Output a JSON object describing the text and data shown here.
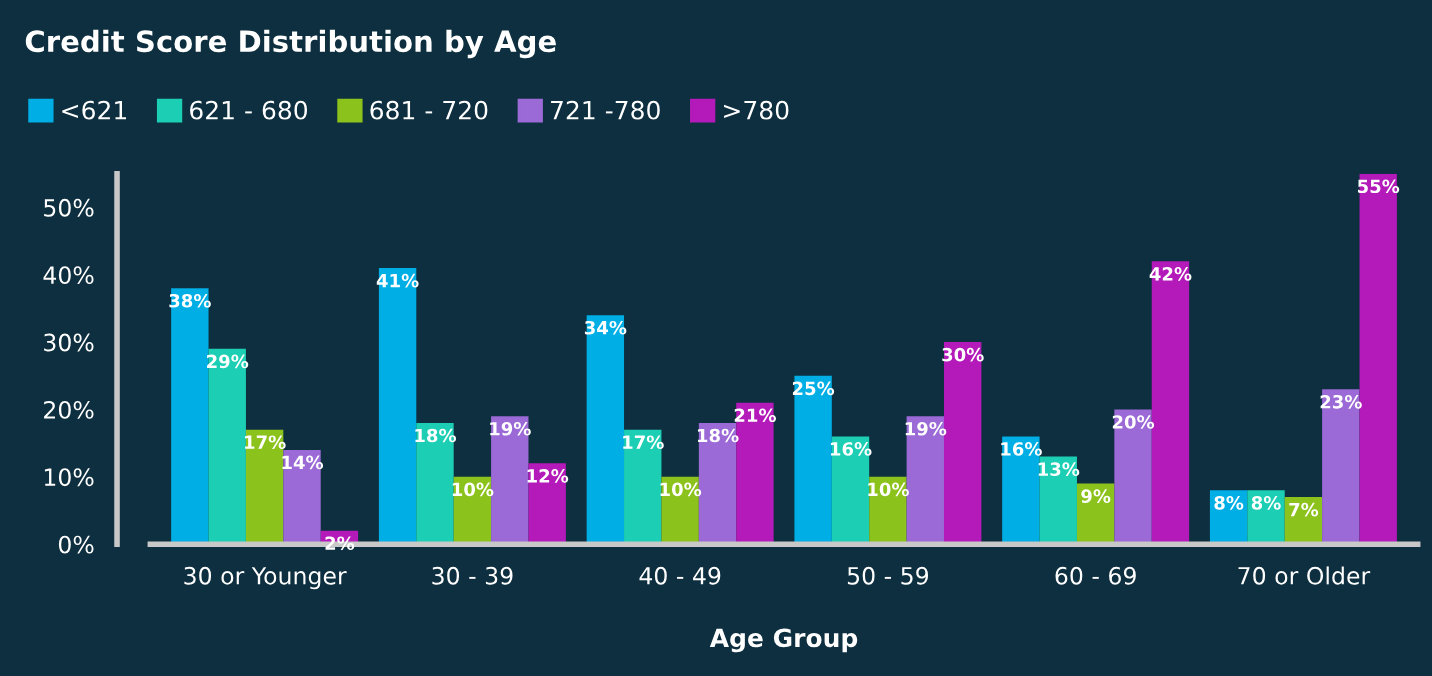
{
  "chart_data": {
    "type": "bar",
    "title": "Credit Score Distribution by Age",
    "xlabel": "Age Group",
    "categories": [
      "30 or Younger",
      "30 - 39",
      "40 - 49",
      "50 - 59",
      "60 - 69",
      "70 or Older"
    ],
    "series": [
      {
        "name": "<621",
        "color": "#00aee6",
        "values": [
          38,
          41,
          34,
          25,
          16,
          8
        ],
        "value_labels": [
          "38%",
          "41%",
          "34%",
          "25%",
          "16%",
          "8%"
        ]
      },
      {
        "name": "621 - 680",
        "color": "#1ccfb4",
        "values": [
          29,
          18,
          17,
          16,
          13,
          8
        ],
        "value_labels": [
          "29%",
          "18%",
          "17%",
          "16%",
          "13%",
          "8%"
        ]
      },
      {
        "name": "681 - 720",
        "color": "#8cc21c",
        "values": [
          17,
          10,
          10,
          10,
          9,
          7
        ],
        "value_labels": [
          "17%",
          "10%",
          "10%",
          "10%",
          "9%",
          "7%"
        ]
      },
      {
        "name": "721 -780",
        "color": "#9b6ad6",
        "values": [
          14,
          19,
          18,
          19,
          20,
          23
        ],
        "value_labels": [
          "14%",
          "19%",
          "18%",
          "19%",
          "20%",
          "23%"
        ]
      },
      {
        "name": ">780",
        "color": "#b41ab9",
        "values": [
          2,
          12,
          21,
          30,
          42,
          55
        ],
        "value_labels": [
          "2%",
          "12%",
          "21%",
          "30%",
          "42%",
          "55%"
        ]
      }
    ],
    "ylim": [
      0,
      55
    ],
    "yticks": [
      {
        "value": 0,
        "label": "0%"
      },
      {
        "value": 10,
        "label": "10%"
      },
      {
        "value": 20,
        "label": "20%"
      },
      {
        "value": 30,
        "label": "30%"
      },
      {
        "value": 40,
        "label": "40%"
      },
      {
        "value": 50,
        "label": "50%"
      }
    ],
    "grid": false,
    "legend": "top left"
  }
}
